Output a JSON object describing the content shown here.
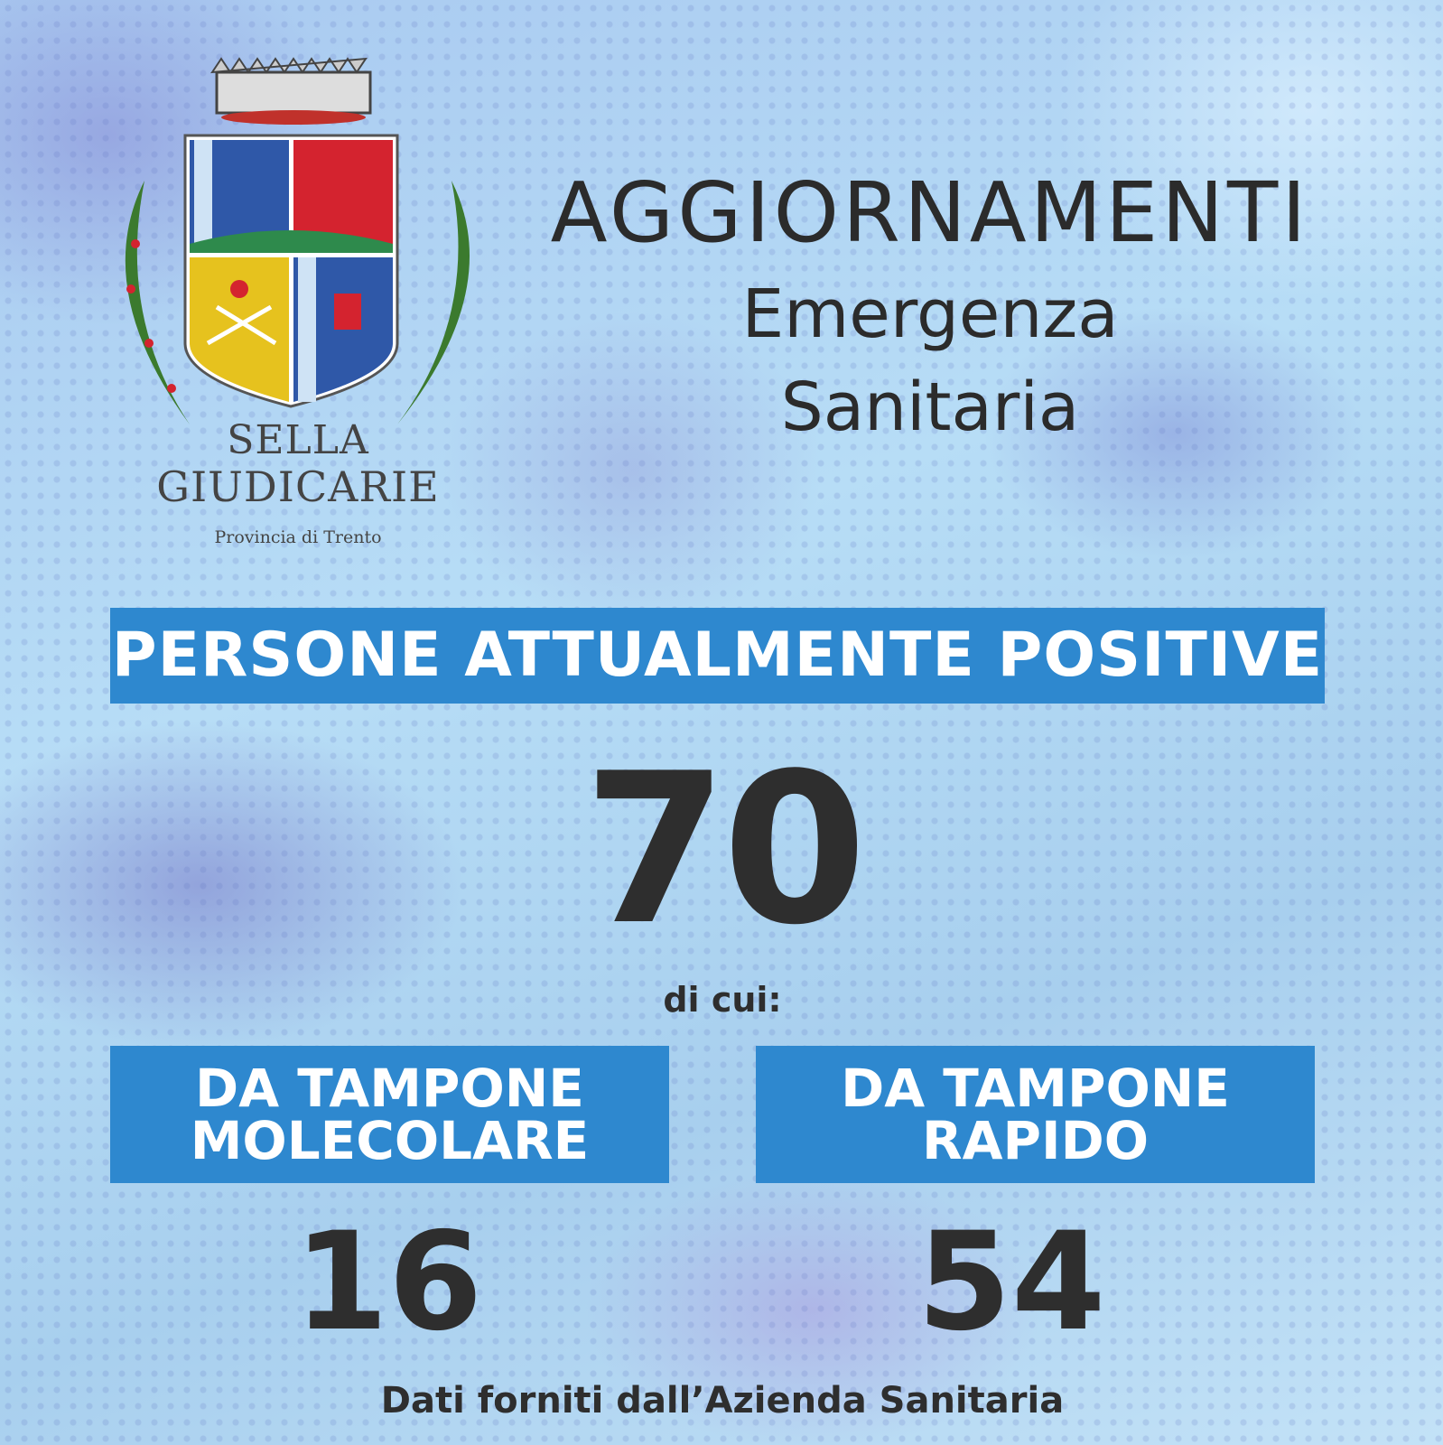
{
  "logo": {
    "name_line1": "SELLA",
    "name_line2": "GIUDICARIE",
    "province": "Provincia di Trento"
  },
  "header": {
    "title": "AGGIORNAMENTI",
    "subtitle1": "Emergenza",
    "subtitle2": "Sanitaria"
  },
  "main": {
    "label": "PERSONE ATTUALMENTE POSITIVE",
    "total": "70",
    "of_which": "di cui:"
  },
  "breakdown": [
    {
      "label_line1": "DA TAMPONE",
      "label_line2": "MOLECOLARE",
      "value": "16"
    },
    {
      "label_line1": "DA TAMPONE",
      "label_line2": "RAPIDO",
      "value": "54"
    }
  ],
  "footer": {
    "source": "Dati forniti dall’Azienda Sanitaria"
  },
  "colors": {
    "accent": "#2e88cf",
    "text": "#2e2e2e"
  }
}
